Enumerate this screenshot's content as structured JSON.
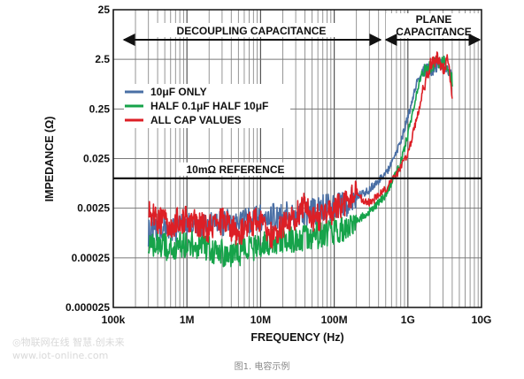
{
  "chart_data": {
    "type": "line",
    "xlabel": "FREQUENCY (Hz)",
    "ylabel": "IMPEDANCE (Ω)",
    "x_scale": "log",
    "y_scale": "log",
    "xlim": [
      100000,
      10000000000
    ],
    "ylim": [
      2.5e-05,
      25
    ],
    "x_ticks": [
      {
        "value": 100000,
        "label": "100k"
      },
      {
        "value": 1000000,
        "label": "1M"
      },
      {
        "value": 10000000,
        "label": "10M"
      },
      {
        "value": 100000000,
        "label": "100M"
      },
      {
        "value": 1000000000,
        "label": "1G"
      },
      {
        "value": 10000000000,
        "label": "10G"
      }
    ],
    "y_ticks": [
      {
        "value": 25,
        "label": "25"
      },
      {
        "value": 2.5,
        "label": "2.5"
      },
      {
        "value": 0.25,
        "label": "0.25"
      },
      {
        "value": 0.025,
        "label": "0.025"
      },
      {
        "value": 0.0025,
        "label": "0.0025"
      },
      {
        "value": 0.00025,
        "label": "0.00025"
      },
      {
        "value": 2.5e-05,
        "label": "0.000025"
      }
    ],
    "grid": true,
    "legend_position": "upper-left",
    "reference_line": {
      "value": 0.01,
      "label": "10mΩ REFERENCE"
    },
    "annotations": [
      {
        "text": "DECOUPLING CAPACITANCE",
        "x_from": 100000,
        "x_to": 450000000
      },
      {
        "text": "PLANE\nCAPACITANCE",
        "x_from": 450000000,
        "x_to": 10000000000
      }
    ],
    "series": [
      {
        "name": "10μF ONLY",
        "color": "#4a6fa5",
        "x": [
          300000,
          400000,
          600000,
          1000000,
          2000000,
          4000000,
          7000000,
          10000000,
          20000000,
          40000000,
          70000000,
          100000000,
          150000000,
          200000000,
          300000000,
          400000000,
          500000000,
          600000000,
          700000000,
          800000000,
          900000000,
          1000000000,
          1100000000,
          1300000000,
          1600000000,
          2000000000,
          2500000000,
          3000000000,
          3500000000,
          4000000000
        ],
        "y": [
          0.0008,
          0.0012,
          0.0009,
          0.0012,
          0.0013,
          0.0014,
          0.0016,
          0.0017,
          0.0019,
          0.0022,
          0.0026,
          0.0028,
          0.0034,
          0.0042,
          0.006,
          0.009,
          0.013,
          0.02,
          0.034,
          0.055,
          0.1,
          0.18,
          0.3,
          0.8,
          1.6,
          1.5,
          2.0,
          2.2,
          1.8,
          0.9
        ]
      },
      {
        "name": "HALF 0.1μF HALF 10μF",
        "color": "#16a34a",
        "x": [
          300000,
          400000,
          600000,
          1000000,
          2000000,
          4000000,
          7000000,
          10000000,
          20000000,
          40000000,
          70000000,
          100000000,
          150000000,
          200000000,
          300000000,
          400000000,
          500000000,
          600000000,
          700000000,
          800000000,
          900000000,
          1000000000,
          1100000000,
          1300000000,
          1600000000,
          2000000000,
          2500000000,
          3000000000,
          3500000000,
          4000000000
        ],
        "y": [
          0.0006,
          0.0005,
          0.0004,
          0.0005,
          0.0004,
          0.0003,
          0.0004,
          0.0005,
          0.0006,
          0.0007,
          0.0008,
          0.0009,
          0.0011,
          0.0014,
          0.0022,
          0.0032,
          0.0048,
          0.008,
          0.013,
          0.022,
          0.04,
          0.08,
          0.15,
          0.5,
          1.5,
          1.8,
          2.2,
          2.4,
          1.5,
          1.0
        ]
      },
      {
        "name": "ALL CAP VALUES",
        "color": "#dd1f26",
        "x": [
          300000,
          400000,
          600000,
          1000000,
          2000000,
          3000000,
          5000000,
          7000000,
          10000000,
          15000000,
          20000000,
          30000000,
          40000000,
          50000000,
          70000000,
          100000000,
          150000000,
          200000000,
          250000000,
          300000000,
          400000000,
          500000000,
          700000000,
          1000000000,
          1300000000,
          1600000000,
          2000000000,
          2500000000,
          3000000000,
          3500000000,
          4000000000
        ],
        "y": [
          0.0025,
          0.0015,
          0.0013,
          0.0017,
          0.001,
          0.0015,
          0.0008,
          0.0012,
          0.0018,
          0.0006,
          0.0012,
          0.0017,
          0.0035,
          0.0015,
          0.0019,
          0.0025,
          0.0035,
          0.0055,
          0.0035,
          0.0033,
          0.0045,
          0.0062,
          0.012,
          0.03,
          0.15,
          0.6,
          2.0,
          2.8,
          1.6,
          2.6,
          0.35
        ]
      }
    ]
  },
  "caption": "图1. 电容示例",
  "watermark": {
    "line1": "◎物联网在线 智慧.创未来",
    "line2": "www.iot-online.com"
  }
}
